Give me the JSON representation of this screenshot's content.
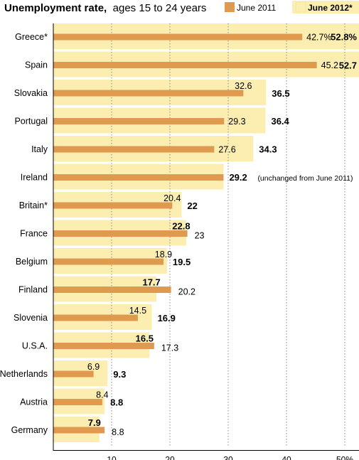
{
  "chart_data": {
    "type": "bar",
    "orientation": "horizontal",
    "title": "Unemployment rate,",
    "subtitle": "ages 15 to 24 years",
    "categories": [
      "Greece*",
      "Spain",
      "Slovakia",
      "Portugal",
      "Italy",
      "Ireland",
      "Britain*",
      "France",
      "Belgium",
      "Finland",
      "Slovenia",
      "U.S.A.",
      "Netherlands",
      "Austria",
      "Germany"
    ],
    "series": [
      {
        "name": "June 2011",
        "color": "#df9a4f",
        "values": [
          42.7,
          45.2,
          32.6,
          29.3,
          27.6,
          29.2,
          20.4,
          23,
          18.9,
          20.2,
          14.5,
          17.3,
          6.9,
          8.4,
          8.8
        ],
        "labels": [
          "42.7%",
          "45.2",
          "32.6",
          "29.3",
          "27.6",
          "",
          "20.4",
          "23",
          "18.9",
          "20.2",
          "14.5",
          "17.3",
          "6.9",
          "8.4",
          "8.8"
        ]
      },
      {
        "name": "June 2012*",
        "color": "#fbeeb0",
        "values": [
          52.8,
          52.7,
          36.5,
          36.4,
          34.3,
          29.2,
          22,
          22.8,
          19.5,
          17.7,
          16.9,
          16.5,
          9.3,
          8.8,
          7.9
        ],
        "labels": [
          "52.8%",
          "52.7",
          "36.5",
          "36.4",
          "34.3",
          "29.2",
          "22",
          "22.8",
          "19.5",
          "17.7",
          "16.9",
          "16.5",
          "9.3",
          "8.8",
          "7.9"
        ]
      }
    ],
    "annotations": [
      {
        "category": "Ireland",
        "text": "(unchanged from June 2011)"
      }
    ],
    "xaxis": {
      "ticks": [
        10,
        20,
        30,
        40,
        50
      ],
      "tick_labels": [
        "10",
        "20",
        "30",
        "40",
        "50%"
      ],
      "xlim": [
        0,
        52.8
      ]
    },
    "grid": "vertical dotted",
    "legend": "top-right"
  }
}
